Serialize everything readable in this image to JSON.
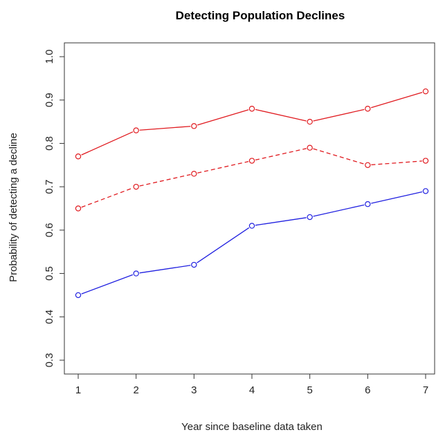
{
  "chart_data": {
    "type": "line",
    "title": "Detecting Population Declines",
    "xlabel": "Year since baseline data taken",
    "ylabel": "Probability of detecting a decline",
    "x": [
      1,
      2,
      3,
      4,
      5,
      6,
      7
    ],
    "xlim": [
      1,
      7
    ],
    "ylim": [
      0.3,
      1.0
    ],
    "xticks": [
      "1",
      "2",
      "3",
      "4",
      "5",
      "6",
      "7"
    ],
    "yticks": [
      "0.3",
      "0.4",
      "0.5",
      "0.6",
      "0.7",
      "0.8",
      "0.9",
      "1.0"
    ],
    "grid": false,
    "legend": "none",
    "series": [
      {
        "values": [
          0.77,
          0.83,
          0.84,
          0.88,
          0.85,
          0.88,
          0.92
        ],
        "color": "#e0191e",
        "dashed": false
      },
      {
        "values": [
          0.65,
          0.7,
          0.73,
          0.76,
          0.79,
          0.75,
          0.76
        ],
        "color": "#e0191e",
        "dashed": true
      },
      {
        "values": [
          0.45,
          0.5,
          0.52,
          0.61,
          0.63,
          0.66,
          0.69
        ],
        "color": "#1f1fe0",
        "dashed": false
      }
    ]
  }
}
